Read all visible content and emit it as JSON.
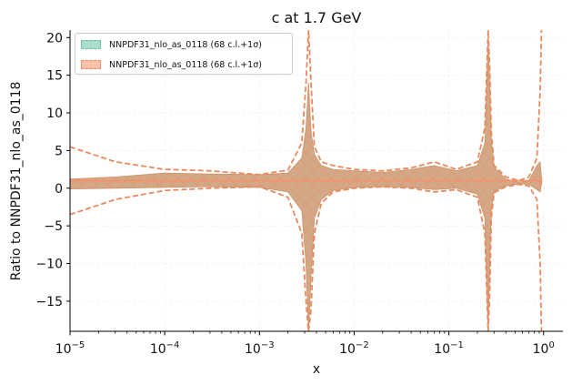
{
  "chart_data": {
    "type": "area",
    "title": "c at 1.7 GeV",
    "xlabel": "x",
    "ylabel": "Ratio to NNPDF31_nlo_as_0118",
    "xscale": "log",
    "xlim": [
      1e-05,
      1.6
    ],
    "ylim": [
      -19,
      21
    ],
    "x_ticks": [
      {
        "value": 1e-05,
        "base": "10",
        "exp": "−5"
      },
      {
        "value": 0.0001,
        "base": "10",
        "exp": "−4"
      },
      {
        "value": 0.001,
        "base": "10",
        "exp": "−3"
      },
      {
        "value": 0.01,
        "base": "10",
        "exp": "−2"
      },
      {
        "value": 0.1,
        "base": "10",
        "exp": "−1"
      },
      {
        "value": 1,
        "base": "10",
        "exp": "0"
      }
    ],
    "y_ticks": [
      {
        "value": 20,
        "label": "20"
      },
      {
        "value": 15,
        "label": "15"
      },
      {
        "value": 10,
        "label": "10"
      },
      {
        "value": 5,
        "label": "5"
      },
      {
        "value": 0,
        "label": "0"
      },
      {
        "value": -5,
        "label": "−5"
      },
      {
        "value": -10,
        "label": "−10"
      },
      {
        "value": -15,
        "label": "−15"
      }
    ],
    "grid": true,
    "legend_position": "top-left",
    "legend": [
      {
        "label": "NNPDF31_nlo_as_0118 (68 c.l.+1σ)",
        "color": "#66c2a5"
      },
      {
        "label": "NNPDF31_nlo_as_0118 (68 c.l.+1σ)",
        "color": "#fc8d62"
      }
    ],
    "series": [
      {
        "color": "#fc8d62",
        "central": 1,
        "x": [
          1e-05,
          3e-05,
          0.0001,
          0.0003,
          0.001,
          0.002,
          0.0028,
          0.0031,
          0.0033,
          0.0035,
          0.0038,
          0.0045,
          0.006,
          0.01,
          0.02,
          0.04,
          0.07,
          0.12,
          0.2,
          0.24,
          0.26,
          0.27,
          0.28,
          0.3,
          0.4,
          0.55,
          0.7,
          0.85,
          0.92,
          0.95
        ],
        "band_upper": [
          1.2,
          1.5,
          2.0,
          1.9,
          1.8,
          2.0,
          4.0,
          8.0,
          14.0,
          7.5,
          4.5,
          3.0,
          2.5,
          2.3,
          2.1,
          2.5,
          3.0,
          2.3,
          3.0,
          6.0,
          20.0,
          14.0,
          6.5,
          2.8,
          1.2,
          0.8,
          1.0,
          3.0,
          3.5,
          1.5
        ],
        "band_lower": [
          -0.1,
          0.0,
          0.1,
          0.2,
          0.1,
          -0.5,
          -3.0,
          -10.0,
          -19.0,
          -12.0,
          -4.0,
          -1.5,
          -0.3,
          0.1,
          0.2,
          0.1,
          -0.2,
          0.0,
          -0.8,
          -4.0,
          -19.0,
          -10.0,
          -3.0,
          -0.4,
          0.3,
          0.6,
          0.5,
          -0.2,
          -0.5,
          0.5
        ],
        "dashed_upper": [
          5.5,
          3.5,
          2.5,
          2.3,
          1.8,
          2.4,
          6.0,
          14.0,
          21.0,
          14.0,
          5.5,
          3.5,
          3.0,
          2.5,
          2.3,
          2.7,
          3.5,
          2.5,
          3.5,
          8.0,
          21.0,
          16.0,
          7.5,
          3.0,
          1.5,
          1.0,
          1.5,
          4.0,
          13.0,
          21.0
        ],
        "dashed_lower": [
          -3.5,
          -1.5,
          -0.3,
          0.0,
          0.2,
          -1.2,
          -6.0,
          -15.0,
          -19.0,
          -16.0,
          -6.0,
          -2.0,
          -0.5,
          0.0,
          0.2,
          0.0,
          -0.5,
          -0.2,
          -1.2,
          -6.0,
          -19.0,
          -14.0,
          -4.0,
          -0.6,
          0.2,
          0.5,
          0.3,
          -1.5,
          -10.0,
          -19.0
        ]
      }
    ]
  }
}
